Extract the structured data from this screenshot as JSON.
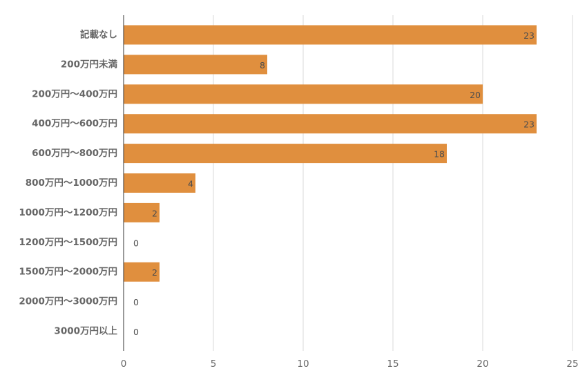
{
  "chart_data": {
    "type": "bar",
    "orientation": "horizontal",
    "categories": [
      "記載なし",
      "200万円未満",
      "200万円〜400万円",
      "400万円〜600万円",
      "600万円〜800万円",
      "800万円〜1000万円",
      "1000万円〜1200万円",
      "1200万円〜1500万円",
      "1500万円〜2000万円",
      "2000万円〜3000万円",
      "3000万円以上"
    ],
    "values": [
      23,
      8,
      20,
      23,
      18,
      4,
      2,
      0,
      2,
      0,
      0
    ],
    "xlim": [
      0,
      25
    ],
    "x_ticks": [
      0,
      5,
      10,
      15,
      20,
      25
    ],
    "grid": true,
    "legend": "none",
    "bar_color": "#e08f3e",
    "data_labels": true
  }
}
